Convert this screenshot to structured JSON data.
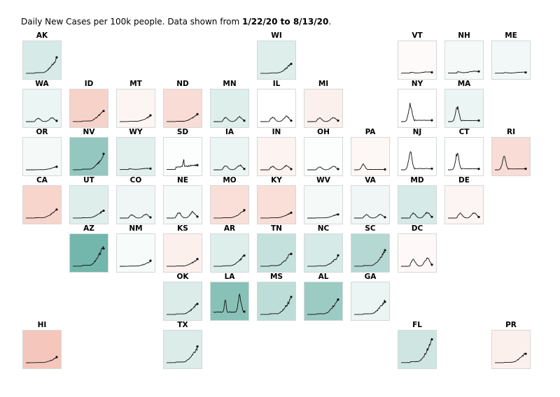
{
  "title": {
    "prefix": "Daily New Cases per 100k people. Data shown from ",
    "start": "1/22/20",
    "mid": " to ",
    "end": "8/13/20",
    "suffix": "."
  },
  "colors": {
    "line": "#111111",
    "high": "#5aa99d",
    "mid": "#ffffff",
    "low": "#ec9a86"
  },
  "chart_data": {
    "type": "line",
    "layout": "tile-grid-map",
    "tiles": [
      {
        "state": "AK",
        "row": 0,
        "col": 0,
        "shape": "late",
        "peak": 0.55,
        "tint": 0.25
      },
      {
        "state": "WI",
        "row": 0,
        "col": 5,
        "shape": "late",
        "peak": 0.35,
        "tint": 0.2
      },
      {
        "state": "VT",
        "row": 0,
        "col": 8,
        "shape": "flat",
        "peak": 0.12,
        "tint": -0.05
      },
      {
        "state": "NH",
        "row": 0,
        "col": 9,
        "shape": "flat",
        "peak": 0.18,
        "tint": 0.06
      },
      {
        "state": "ME",
        "row": 0,
        "col": 10,
        "shape": "flat",
        "peak": 0.1,
        "tint": 0.08
      },
      {
        "state": "WA",
        "row": 1,
        "col": 0,
        "shape": "twohump",
        "peak": 0.2,
        "tint": 0.12
      },
      {
        "state": "ID",
        "row": 1,
        "col": 1,
        "shape": "late",
        "peak": 0.42,
        "tint": -0.45
      },
      {
        "state": "MT",
        "row": 1,
        "col": 2,
        "shape": "late",
        "peak": 0.2,
        "tint": -0.1
      },
      {
        "state": "ND",
        "row": 1,
        "col": 3,
        "shape": "late",
        "peak": 0.25,
        "tint": -0.35
      },
      {
        "state": "MN",
        "row": 1,
        "col": 4,
        "shape": "twohump",
        "peak": 0.25,
        "tint": 0.2
      },
      {
        "state": "IL",
        "row": 1,
        "col": 5,
        "shape": "twohump",
        "peak": 0.28,
        "tint": 0.0
      },
      {
        "state": "MI",
        "row": 1,
        "col": 6,
        "shape": "twohump",
        "peak": 0.22,
        "tint": -0.15
      },
      {
        "state": "NY",
        "row": 1,
        "col": 8,
        "shape": "early",
        "peak": 0.65,
        "tint": 0.0
      },
      {
        "state": "MA",
        "row": 1,
        "col": 9,
        "shape": "early",
        "peak": 0.55,
        "tint": 0.12
      },
      {
        "state": "OR",
        "row": 2,
        "col": 0,
        "shape": "late",
        "peak": 0.12,
        "tint": 0.06
      },
      {
        "state": "NV",
        "row": 2,
        "col": 1,
        "shape": "late",
        "peak": 0.5,
        "tint": 0.65
      },
      {
        "state": "WY",
        "row": 2,
        "col": 2,
        "shape": "flat",
        "peak": 0.12,
        "tint": 0.18
      },
      {
        "state": "SD",
        "row": 2,
        "col": 3,
        "shape": "spike",
        "peak": 0.3,
        "tint": 0.02
      },
      {
        "state": "IA",
        "row": 2,
        "col": 4,
        "shape": "twohump",
        "peak": 0.25,
        "tint": 0.12
      },
      {
        "state": "IN",
        "row": 2,
        "col": 5,
        "shape": "twohump",
        "peak": 0.22,
        "tint": -0.12
      },
      {
        "state": "OH",
        "row": 2,
        "col": 6,
        "shape": "twohump",
        "peak": 0.18,
        "tint": 0.02
      },
      {
        "state": "PA",
        "row": 2,
        "col": 7,
        "shape": "early",
        "peak": 0.2,
        "tint": -0.08
      },
      {
        "state": "NJ",
        "row": 2,
        "col": 8,
        "shape": "early",
        "peak": 0.65,
        "tint": 0.0
      },
      {
        "state": "CT",
        "row": 2,
        "col": 9,
        "shape": "early",
        "peak": 0.6,
        "tint": 0.0
      },
      {
        "state": "RI",
        "row": 2,
        "col": 10,
        "shape": "early",
        "peak": 0.5,
        "tint": -0.35
      },
      {
        "state": "CA",
        "row": 3,
        "col": 0,
        "shape": "late",
        "peak": 0.3,
        "tint": -0.42
      },
      {
        "state": "UT",
        "row": 3,
        "col": 1,
        "shape": "late",
        "peak": 0.28,
        "tint": 0.2
      },
      {
        "state": "CO",
        "row": 3,
        "col": 2,
        "shape": "twohump",
        "peak": 0.2,
        "tint": 0.1
      },
      {
        "state": "NE",
        "row": 3,
        "col": 3,
        "shape": "twohump",
        "peak": 0.32,
        "tint": 0.06
      },
      {
        "state": "MO",
        "row": 3,
        "col": 4,
        "shape": "late",
        "peak": 0.28,
        "tint": -0.32
      },
      {
        "state": "KY",
        "row": 3,
        "col": 5,
        "shape": "late",
        "peak": 0.2,
        "tint": -0.32
      },
      {
        "state": "WV",
        "row": 3,
        "col": 6,
        "shape": "late",
        "peak": 0.15,
        "tint": 0.06
      },
      {
        "state": "VA",
        "row": 3,
        "col": 7,
        "shape": "twohump",
        "peak": 0.2,
        "tint": 0.1
      },
      {
        "state": "MD",
        "row": 3,
        "col": 8,
        "shape": "twohump",
        "peak": 0.3,
        "tint": 0.25
      },
      {
        "state": "DE",
        "row": 3,
        "col": 9,
        "shape": "twohump",
        "peak": 0.28,
        "tint": -0.1
      },
      {
        "state": "AZ",
        "row": 4,
        "col": 1,
        "shape": "late",
        "peak": 0.72,
        "tint": 0.85
      },
      {
        "state": "NM",
        "row": 4,
        "col": 2,
        "shape": "late",
        "peak": 0.18,
        "tint": 0.05
      },
      {
        "state": "KS",
        "row": 4,
        "col": 3,
        "shape": "late",
        "peak": 0.25,
        "tint": -0.15
      },
      {
        "state": "AR",
        "row": 4,
        "col": 4,
        "shape": "late",
        "peak": 0.4,
        "tint": 0.2
      },
      {
        "state": "TN",
        "row": 4,
        "col": 5,
        "shape": "late",
        "peak": 0.5,
        "tint": 0.35
      },
      {
        "state": "NC",
        "row": 4,
        "col": 6,
        "shape": "late",
        "peak": 0.35,
        "tint": 0.25
      },
      {
        "state": "SC",
        "row": 4,
        "col": 7,
        "shape": "late",
        "peak": 0.55,
        "tint": 0.45
      },
      {
        "state": "DC",
        "row": 4,
        "col": 8,
        "shape": "twohump",
        "peak": 0.42,
        "tint": -0.06
      },
      {
        "state": "OK",
        "row": 5,
        "col": 3,
        "shape": "late",
        "peak": 0.42,
        "tint": 0.22
      },
      {
        "state": "LA",
        "row": 5,
        "col": 4,
        "shape": "twopeak",
        "peak": 0.6,
        "tint": 0.72
      },
      {
        "state": "MS",
        "row": 5,
        "col": 5,
        "shape": "late",
        "peak": 0.6,
        "tint": 0.4
      },
      {
        "state": "AL",
        "row": 5,
        "col": 6,
        "shape": "late",
        "peak": 0.55,
        "tint": 0.6
      },
      {
        "state": "GA",
        "row": 5,
        "col": 7,
        "shape": "late",
        "peak": 0.5,
        "tint": 0.12
      },
      {
        "state": "HI",
        "row": 6,
        "col": 0,
        "shape": "late",
        "peak": 0.18,
        "tint": -0.55
      },
      {
        "state": "TX",
        "row": 6,
        "col": 3,
        "shape": "late",
        "peak": 0.55,
        "tint": 0.22
      },
      {
        "state": "FL",
        "row": 6,
        "col": 8,
        "shape": "late",
        "peak": 0.85,
        "tint": 0.3
      },
      {
        "state": "PR",
        "row": 6,
        "col": 10,
        "shape": "late",
        "peak": 0.35,
        "tint": -0.15
      }
    ]
  }
}
